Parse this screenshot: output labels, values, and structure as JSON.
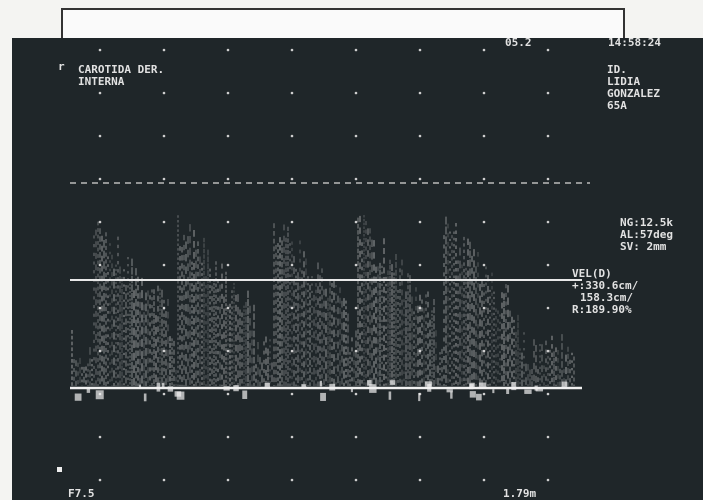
{
  "screen": {
    "top_left_cut": "05.2",
    "top_right_cut": "14:58:24",
    "vessel": [
      "CAROTIDA DER.",
      "INTERNA"
    ],
    "patient": [
      "ID.",
      "LIDIA",
      "GONZALEZ",
      "65A"
    ],
    "settings": [
      "NG:12.5k",
      "AL:57deg",
      "SV: 2mm"
    ],
    "measurements": [
      "VEL(D)",
      "+:330.6cm/",
      "158.3cm/",
      "R:189.90%"
    ],
    "bottom_left": "F7.5",
    "bottom_right": "1.79m"
  }
}
